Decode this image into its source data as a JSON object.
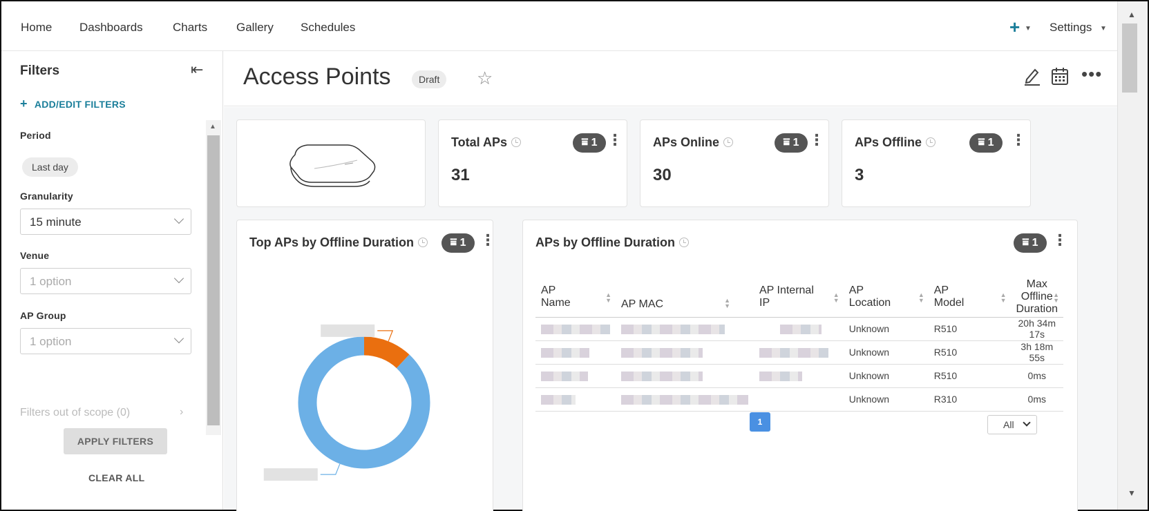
{
  "nav": {
    "items": [
      "Home",
      "Dashboards",
      "Charts",
      "Gallery",
      "Schedules"
    ],
    "settings_label": "Settings"
  },
  "sidebar": {
    "title": "Filters",
    "add_filters_label": "ADD/EDIT FILTERS",
    "period": {
      "label": "Period",
      "value": "Last day"
    },
    "granularity": {
      "label": "Granularity",
      "value": "15 minute"
    },
    "venue": {
      "label": "Venue",
      "placeholder": "1 option"
    },
    "ap_group": {
      "label": "AP Group",
      "placeholder": "1 option"
    },
    "out_of_scope": "Filters out of scope (0)",
    "apply_label": "APPLY FILTERS",
    "clear_label": "CLEAR ALL"
  },
  "header": {
    "title": "Access Points",
    "status": "Draft"
  },
  "cards": {
    "total": {
      "title": "Total APs",
      "badge": "1",
      "value": "31"
    },
    "online": {
      "title": "APs Online",
      "badge": "1",
      "value": "30"
    },
    "offline": {
      "title": "APs Offline",
      "badge": "1",
      "value": "3"
    },
    "top_chart": {
      "title": "Top APs by Offline Duration",
      "badge": "1"
    },
    "table_card": {
      "title": "APs by Offline Duration",
      "badge": "1"
    }
  },
  "chart_data": {
    "type": "pie",
    "donut": true,
    "title": "Top APs by Offline Duration",
    "slices": [
      {
        "label": "",
        "value": 88,
        "color": "#6cb0e6"
      },
      {
        "label": "",
        "value": 12,
        "color": "#ea6f0f"
      }
    ]
  },
  "table": {
    "columns": [
      {
        "line1": "AP",
        "line2": "Name"
      },
      {
        "line1": "AP MAC",
        "line2": ""
      },
      {
        "line1": "AP Internal",
        "line2": "IP"
      },
      {
        "line1": "AP",
        "line2": "Location"
      },
      {
        "line1": "AP",
        "line2": "Model"
      },
      {
        "line1": "Max Offline",
        "line2": "Duration"
      }
    ],
    "rows": [
      {
        "location": "Unknown",
        "model": "R510",
        "duration": "20h 34m 17s"
      },
      {
        "location": "Unknown",
        "model": "R510",
        "duration": "3h 18m 55s"
      },
      {
        "location": "Unknown",
        "model": "R510",
        "duration": "0ms"
      },
      {
        "location": "Unknown",
        "model": "R310",
        "duration": "0ms"
      }
    ],
    "page": "1",
    "page_size": "All"
  },
  "colors": {
    "accent": "#1a7e9a",
    "badge": "#555555",
    "pager": "#4a90e2"
  }
}
